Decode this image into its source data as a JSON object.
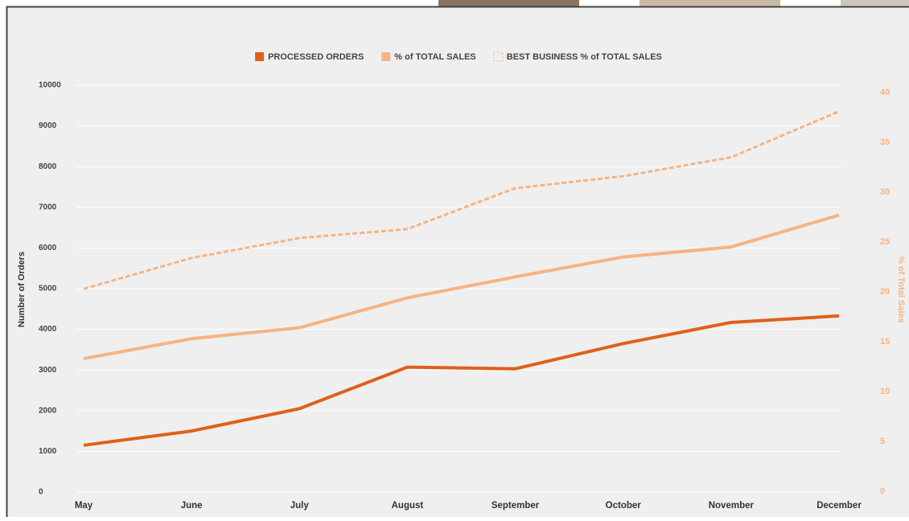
{
  "chart_data": {
    "type": "line",
    "categories": [
      "May",
      "June",
      "July",
      "August",
      "September",
      "October",
      "November",
      "December"
    ],
    "series": [
      {
        "name": "PROCESSED ORDERS",
        "color": "#e0601a",
        "line_style": "solid",
        "axis": "y",
        "values": [
          1150,
          1500,
          2050,
          3070,
          3030,
          3650,
          4170,
          4330
        ]
      },
      {
        "name": "% of TOTAL SALES",
        "color": "#f6b483",
        "line_style": "solid",
        "axis": "y2",
        "values": [
          13.3,
          15.3,
          16.4,
          19.4,
          21.5,
          23.5,
          24.5,
          27.7
        ]
      },
      {
        "name": "BEST BUSINESS % of TOTAL SALES",
        "color": "#f6b483",
        "line_style": "dashed",
        "axis": "y2",
        "values": [
          20.3,
          23.4,
          25.4,
          26.3,
          30.4,
          31.6,
          33.5,
          38.1
        ]
      }
    ],
    "y_label": "Number of Orders",
    "y2_label": "% of Total Sales",
    "ylim": [
      0,
      10000
    ],
    "yticks": [
      0,
      1000,
      2000,
      3000,
      4000,
      5000,
      6000,
      7000,
      8000,
      9000,
      10000
    ],
    "y2lim": [
      0,
      40
    ],
    "y2ticks": [
      0,
      5,
      10,
      15,
      20,
      25,
      30,
      35,
      40
    ],
    "grid": true,
    "legend": "top"
  }
}
